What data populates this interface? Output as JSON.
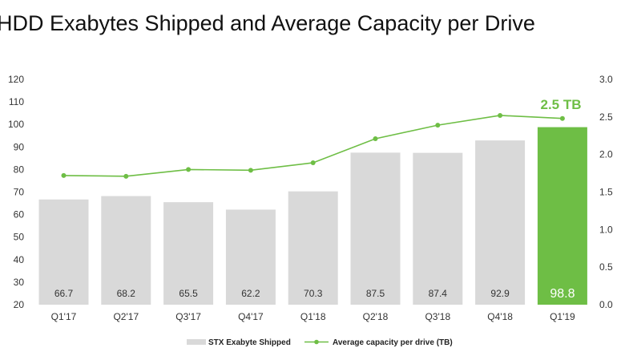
{
  "chart_data": {
    "type": "bar",
    "title": "HDD Exabytes Shipped and Average Capacity per Drive",
    "categories": [
      "Q1'17",
      "Q2'17",
      "Q3'17",
      "Q4'17",
      "Q1'18",
      "Q2'18",
      "Q3'18",
      "Q4'18",
      "Q1'19"
    ],
    "series": [
      {
        "name": "STX Exabyte Shipped",
        "type": "bar",
        "axis": "left",
        "values": [
          66.7,
          68.2,
          65.5,
          62.2,
          70.3,
          87.5,
          87.4,
          92.9,
          98.8
        ],
        "labels": [
          "66.7",
          "68.2",
          "65.5",
          "62.2",
          "70.3",
          "87.5",
          "87.4",
          "92.9",
          "98.8"
        ],
        "color": "#d9d9d9",
        "highlight_color": "#6ebe45"
      },
      {
        "name": "Average capacity per drive (TB)",
        "type": "line",
        "axis": "right",
        "values": [
          1.72,
          1.71,
          1.8,
          1.79,
          1.89,
          2.21,
          2.39,
          2.52,
          2.48
        ],
        "color": "#6ebe45"
      }
    ],
    "left_axis": {
      "range": [
        20,
        120
      ],
      "ticks": [
        "120",
        "110",
        "100",
        "90",
        "80",
        "70",
        "60",
        "50",
        "40",
        "30",
        "20"
      ]
    },
    "right_axis": {
      "range": [
        0,
        3
      ],
      "ticks": [
        "3.0",
        "2.5",
        "2.0",
        "1.5",
        "1.0",
        "0.5",
        "0.0"
      ]
    },
    "annotation": {
      "text": "2.5 TB",
      "color": "#6ebe45"
    },
    "legend": {
      "position": "bottom"
    },
    "grid": false
  }
}
